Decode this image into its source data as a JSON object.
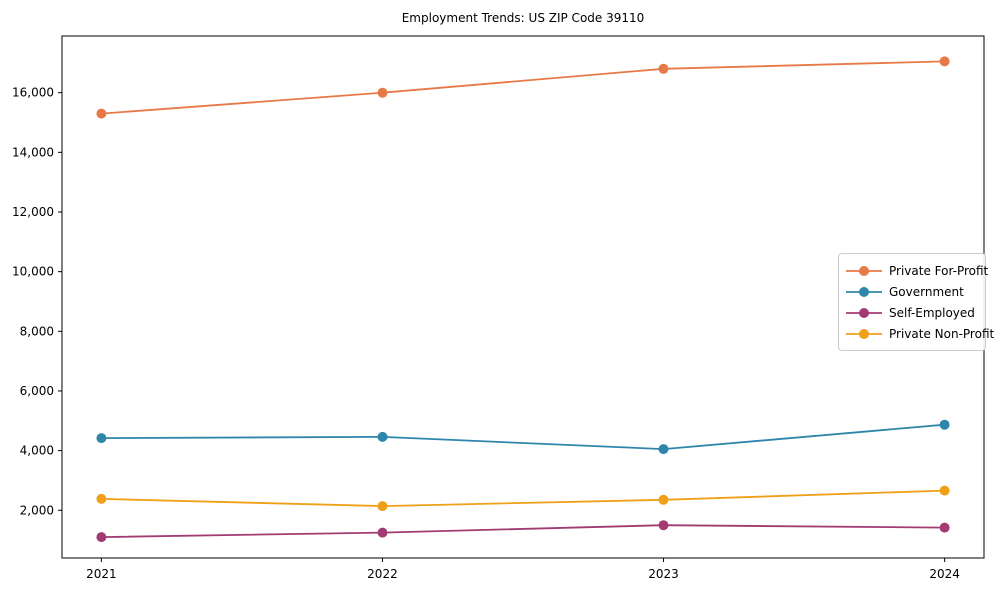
{
  "title": "Employment Trends: US ZIP Code 39110",
  "chart_data": {
    "type": "line",
    "title": "Employment Trends: US ZIP Code 39110",
    "xlabel": "",
    "ylabel": "",
    "x": [
      2021,
      2022,
      2023,
      2024
    ],
    "series": [
      {
        "name": "Private For-Profit",
        "color": "#E77948",
        "values": [
          15300,
          16000,
          16800,
          17050
        ]
      },
      {
        "name": "Government",
        "color": "#2E86AB",
        "values": [
          4420,
          4460,
          4050,
          4870
        ]
      },
      {
        "name": "Self-Employed",
        "color": "#A23B72",
        "values": [
          1100,
          1250,
          1500,
          1420
        ]
      },
      {
        "name": "Private Non-Profit",
        "color": "#F0A018",
        "values": [
          2380,
          2140,
          2350,
          2660
        ]
      }
    ],
    "xlim": [
      2020.86,
      2024.14
    ],
    "ylim": [
      400,
      17900
    ],
    "xticks": [
      {
        "v": 2021,
        "label": "2021"
      },
      {
        "v": 2022,
        "label": "2022"
      },
      {
        "v": 2023,
        "label": "2023"
      },
      {
        "v": 2024,
        "label": "2024"
      }
    ],
    "yticks": [
      {
        "v": 2000,
        "label": "2,000"
      },
      {
        "v": 4000,
        "label": "4,000"
      },
      {
        "v": 6000,
        "label": "6,000"
      },
      {
        "v": 8000,
        "label": "8,000"
      },
      {
        "v": 10000,
        "label": "10,000"
      },
      {
        "v": 12000,
        "label": "12,000"
      },
      {
        "v": 14000,
        "label": "14,000"
      },
      {
        "v": 16000,
        "label": "16,000"
      }
    ],
    "grid": false,
    "legend_position": "center right",
    "marker": "circle",
    "axis_color": "#000000"
  }
}
